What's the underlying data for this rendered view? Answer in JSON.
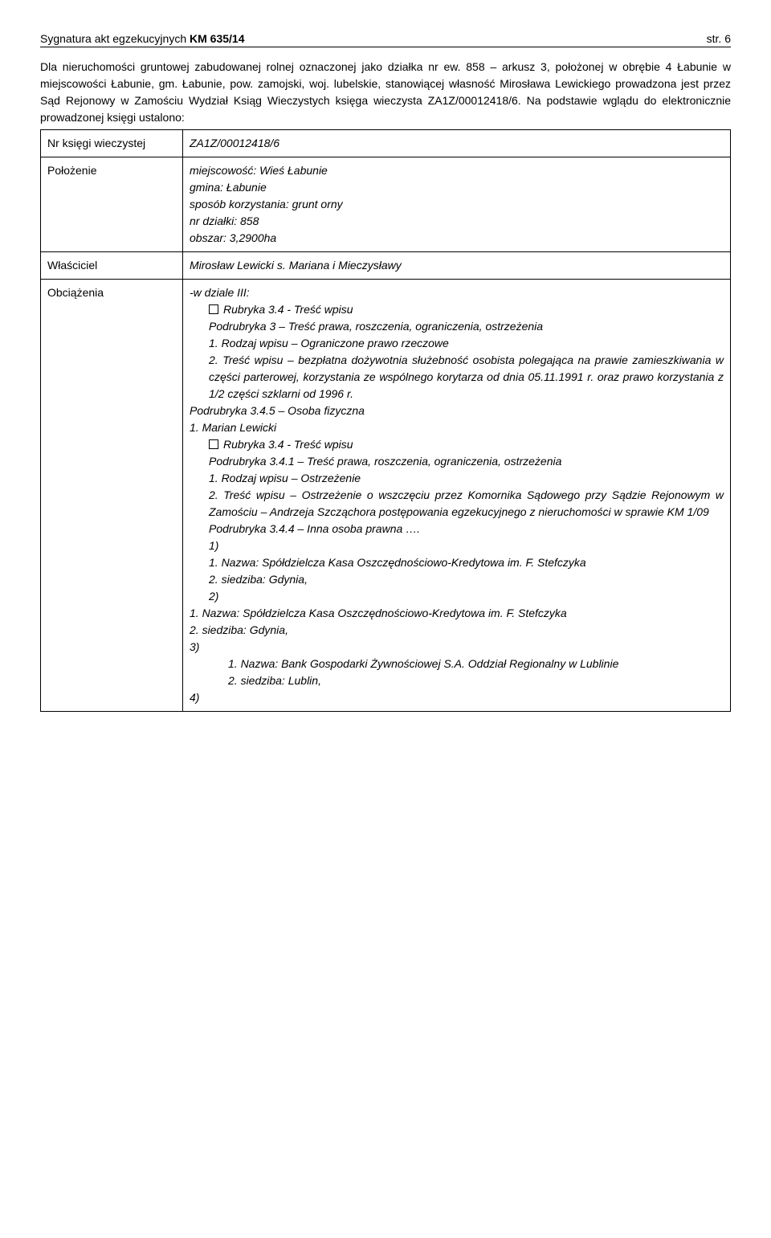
{
  "header": {
    "left_prefix": "Sygnatura akt egzekucyjnych ",
    "case_no": "KM 635/14",
    "right": "str. 6"
  },
  "intro": "Dla nieruchomości gruntowej zabudowanej rolnej oznaczonej jako działka nr ew. 858 – arkusz 3, położonej w obrębie 4 Łabunie w miejscowości Łabunie, gm. Łabunie, pow. zamojski, woj. lubelskie, stanowiącej własność Mirosława Lewickiego prowadzona jest przez Sąd Rejonowy w Zamościu Wydział Ksiąg Wieczystych księga wieczysta ZA1Z/00012418/6. Na podstawie wglądu do elektronicznie prowadzonej księgi ustalono:",
  "rows": {
    "nr_ksiegi": {
      "label": "Nr księgi wieczystej",
      "value": "ZA1Z/00012418/6"
    },
    "polozenie": {
      "label": "Położenie",
      "lines": [
        "miejscowość: Wieś Łabunie",
        "gmina: Łabunie",
        "sposób korzystania: grunt orny",
        "nr działki: 858",
        "obszar: 3,2900ha"
      ]
    },
    "wlasciciel": {
      "label": "Właściciel",
      "value": "Mirosław Lewicki s. Mariana i Mieczysławy"
    },
    "obciazenia": {
      "label": "Obciążenia",
      "dzial": "-w dziale III:",
      "r1_rubryka": "Rubryka 3.4 - Treść wpisu",
      "r1_podrubryka3": "Podrubryka 3 – Treść prawa, roszczenia, ograniczenia, ostrzeżenia",
      "r1_1": "1. Rodzaj wpisu – Ograniczone prawo rzeczowe",
      "r1_2": "2. Treść wpisu – bezpłatna dożywotnia służebność osobista polegająca na prawie zamieszkiwania w części parterowej, korzystania ze wspólnego korytarza od dnia 05.11.1991 r. oraz prawo korzystania z 1/2 części szklarni od 1996 r.",
      "r1_345": "Podrubryka 3.4.5 – Osoba fizyczna",
      "r1_marian": "1. Marian Lewicki",
      "r2_rubryka": "Rubryka 3.4 - Treść wpisu",
      "r2_341": "Podrubryka 3.4.1 – Treść prawa, roszczenia, ograniczenia, ostrzeżenia",
      "r2_1": "1. Rodzaj  wpisu – Ostrzeżenie",
      "r2_2": "2. Treść wpisu – Ostrzeżenie o wszczęciu przez Komornika Sądowego przy Sądzie Rejonowym w Zamościu – Andrzeja Szcząchora postępowania egzekucyjnego z nieruchomości w sprawie KM 1/09",
      "r2_344": "Podrubryka 3.4.4 – Inna osoba prawna ….",
      "item1_num": "1)",
      "item1_nazwa": "1. Nazwa: Spółdzielcza Kasa Oszczędnościowo-Kredytowa im. F. Stefczyka",
      "item1_siedziba": "2. siedziba: Gdynia,",
      "item2_num": "2)",
      "item2_nazwa": "1. Nazwa: Spółdzielcza Kasa Oszczędnościowo-Kredytowa im. F. Stefczyka",
      "item2_siedziba": "2. siedziba: Gdynia,",
      "item3_num": "3)",
      "item3_nazwa": "1. Nazwa: Bank Gospodarki Żywnościowej S.A. Oddział Regionalny w Lublinie",
      "item3_siedziba": "2. siedziba: Lublin,",
      "item4_num": "4)"
    }
  }
}
